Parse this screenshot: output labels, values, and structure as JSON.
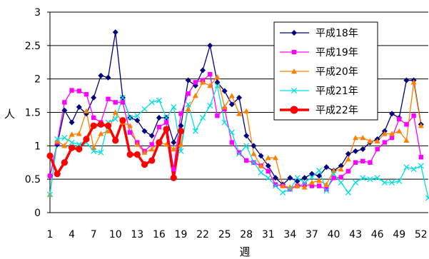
{
  "chart_data": {
    "type": "line",
    "xlabel": "週",
    "ylabel": "人",
    "ylim": [
      0,
      3
    ],
    "yticks": [
      "0",
      "0.5",
      "1",
      "1.5",
      "2",
      "2.5",
      "3"
    ],
    "xlim": [
      1,
      53
    ],
    "xticks": [
      "1",
      "4",
      "7",
      "10",
      "13",
      "16",
      "19",
      "22",
      "25",
      "28",
      "31",
      "34",
      "37",
      "40",
      "43",
      "46",
      "49",
      "52"
    ],
    "grid": true,
    "legend_position": "top-right",
    "series": [
      {
        "name": "平成18年",
        "color": "#000080",
        "marker": "diamond",
        "values": [
          0.55,
          1.02,
          1.53,
          1.35,
          1.58,
          1.48,
          1.72,
          2.05,
          2.02,
          2.7,
          1.72,
          1.42,
          1.38,
          1.22,
          1.15,
          1.42,
          1.42,
          1.05,
          1.3,
          1.98,
          1.9,
          2.13,
          2.5,
          1.95,
          1.82,
          1.62,
          1.72,
          1.15,
          1.0,
          0.85,
          0.7,
          0.52,
          0.42,
          0.52,
          0.47,
          0.52,
          0.58,
          0.55,
          0.68,
          0.63,
          0.7,
          0.88,
          0.92,
          0.95,
          1.05,
          1.1,
          1.22,
          1.48,
          1.42,
          1.98,
          1.98,
          1.32
        ]
      },
      {
        "name": "平成19年",
        "color": "#ff00ff",
        "marker": "square",
        "values": [
          0.55,
          1.05,
          1.65,
          1.83,
          1.82,
          1.77,
          1.42,
          1.35,
          1.7,
          1.65,
          1.65,
          1.2,
          1.05,
          0.92,
          1.02,
          1.28,
          1.35,
          0.65,
          1.48,
          1.78,
          1.95,
          1.98,
          2.07,
          1.45,
          1.55,
          1.05,
          0.9,
          0.78,
          0.75,
          0.7,
          0.62,
          0.42,
          0.4,
          0.35,
          0.4,
          0.42,
          0.4,
          0.4,
          0.35,
          0.52,
          0.53,
          0.62,
          0.75,
          0.77,
          0.75,
          0.95,
          1.05,
          1.12,
          1.4,
          1.32,
          1.45,
          0.83
        ]
      },
      {
        "name": "平成20年",
        "color": "#ff8000",
        "marker": "triangle",
        "values": [
          0.27,
          1.07,
          1.0,
          1.17,
          1.18,
          1.52,
          0.97,
          1.18,
          1.22,
          1.5,
          1.35,
          1.3,
          1.02,
          0.9,
          0.95,
          1.05,
          1.02,
          0.95,
          1.02,
          1.55,
          1.75,
          1.95,
          1.9,
          2.03,
          1.58,
          1.75,
          1.48,
          1.52,
          0.88,
          0.7,
          0.82,
          0.82,
          0.4,
          0.38,
          0.4,
          0.38,
          0.45,
          0.48,
          0.42,
          0.63,
          0.65,
          0.8,
          1.12,
          1.12,
          1.07,
          1.07,
          1.18,
          1.18,
          1.22,
          1.08,
          1.95,
          1.3
        ]
      },
      {
        "name": "平成21年",
        "color": "#00e0e0",
        "marker": "x",
        "values": [
          0.27,
          1.1,
          1.12,
          1.05,
          1.02,
          1.05,
          0.92,
          0.9,
          1.35,
          1.4,
          1.72,
          1.42,
          1.45,
          1.55,
          1.65,
          1.68,
          1.42,
          1.58,
          0.92,
          1.62,
          1.22,
          1.42,
          1.6,
          1.9,
          1.35,
          1.2,
          0.88,
          1.0,
          0.75,
          0.6,
          0.52,
          0.4,
          0.3,
          0.35,
          0.52,
          0.45,
          0.53,
          0.63,
          0.33,
          0.58,
          0.45,
          0.3,
          0.45,
          0.52,
          0.5,
          0.52,
          0.45,
          0.45,
          0.47,
          0.68,
          0.65,
          0.7,
          0.22
        ]
      },
      {
        "name": "平成22年",
        "color": "#ff0000",
        "marker": "circle",
        "values": [
          0.85,
          0.58,
          0.75,
          0.97,
          0.95,
          1.1,
          1.3,
          1.32,
          1.3,
          1.08,
          1.38,
          0.87,
          0.87,
          0.72,
          0.78,
          1.05,
          1.25,
          0.52,
          1.22
        ]
      }
    ]
  }
}
